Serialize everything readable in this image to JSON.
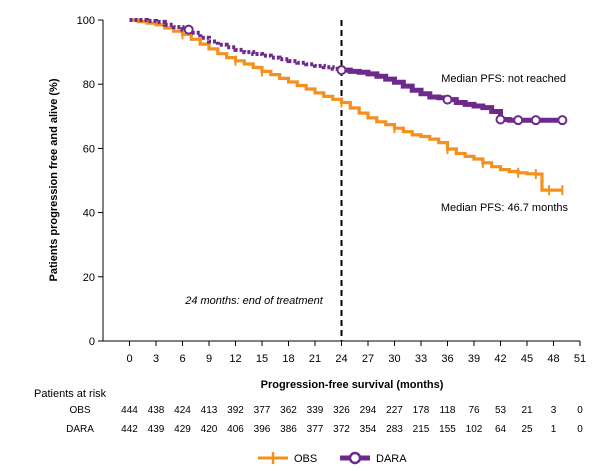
{
  "chart_data": {
    "type": "line",
    "title": "",
    "xlabel": "Progression-free survival (months)",
    "ylabel": "Patients progression free and alive (%)",
    "xlim": [
      -3,
      51
    ],
    "ylim": [
      0,
      100
    ],
    "x_ticks": [
      0,
      3,
      6,
      9,
      12,
      15,
      18,
      21,
      24,
      27,
      30,
      33,
      36,
      39,
      42,
      45,
      48,
      51
    ],
    "y_ticks": [
      0,
      20,
      40,
      60,
      80,
      100
    ],
    "grid": false,
    "vline": {
      "x": 24,
      "label": "24 months: end of treatment"
    },
    "series": [
      {
        "name": "OBS",
        "color": "#F4901E",
        "marker": "censor-tick",
        "x": [
          0,
          1,
          2,
          3,
          4,
          5,
          6,
          7,
          8,
          9,
          10,
          11,
          12,
          13,
          14,
          15,
          16,
          17,
          18,
          19,
          20,
          21,
          22,
          23,
          24,
          25,
          26,
          27,
          28,
          29,
          30,
          31,
          32,
          33,
          34,
          35,
          36,
          37,
          38,
          39,
          40,
          41,
          42,
          43,
          44,
          45,
          46,
          46.7,
          47,
          48,
          49
        ],
        "y": [
          100,
          99.5,
          99,
          98.5,
          97.5,
          96.5,
          95.5,
          94,
          92.5,
          91,
          89.5,
          88.3,
          87.3,
          86.3,
          85.2,
          84,
          83,
          81.8,
          80.7,
          79.6,
          78.5,
          77.3,
          76.2,
          75.3,
          74.3,
          72.6,
          71,
          69.5,
          68.3,
          67.4,
          66.3,
          65.2,
          64.2,
          63.7,
          62.9,
          61.8,
          59.8,
          58.4,
          57.5,
          56.7,
          55.5,
          54.3,
          53.4,
          52.8,
          52.4,
          52.1,
          52,
          47,
          47,
          47,
          47
        ]
      },
      {
        "name": "DARA",
        "color": "#6C2A8C",
        "marker": "open-circle",
        "x": [
          0,
          1,
          2,
          3,
          4,
          5,
          6,
          7,
          8,
          9,
          10,
          11,
          12,
          13,
          14,
          15,
          16,
          17,
          18,
          19,
          20,
          21,
          22,
          23,
          24,
          25,
          26,
          27,
          28,
          29,
          30,
          31,
          32,
          33,
          34,
          35,
          36,
          37,
          38,
          39,
          40,
          41,
          42,
          43,
          44,
          45,
          46,
          47,
          48,
          49
        ],
        "y": [
          100,
          100,
          99.7,
          99.4,
          98.5,
          97.8,
          97,
          96,
          94.5,
          93.3,
          92.3,
          91.5,
          90.7,
          90,
          89.4,
          88.9,
          88.3,
          87.8,
          87.2,
          86.7,
          86.2,
          85.7,
          85.3,
          84.8,
          84.4,
          84,
          83.7,
          83.2,
          82.5,
          81.6,
          80.6,
          79.4,
          78.1,
          77,
          76,
          75.8,
          75.2,
          74.3,
          73.7,
          73.2,
          72.7,
          71.5,
          69,
          68.8,
          68.8,
          68.8,
          68.8,
          68.8,
          68.8,
          68.8
        ]
      }
    ],
    "annotations": [
      {
        "text": "Median PFS: not reached",
        "series": "DARA"
      },
      {
        "text": "Median PFS: 46.7 months",
        "series": "OBS"
      }
    ],
    "legend": [
      "OBS",
      "DARA"
    ],
    "legend_position": "bottom-center"
  },
  "risk_table": {
    "header": "Patients at risk",
    "rows": [
      {
        "label": "OBS",
        "values": [
          "444",
          "438",
          "424",
          "413",
          "392",
          "377",
          "362",
          "339",
          "326",
          "294",
          "227",
          "178",
          "118",
          "76",
          "53",
          "21",
          "3",
          "0"
        ]
      },
      {
        "label": "DARA",
        "values": [
          "442",
          "439",
          "429",
          "420",
          "406",
          "396",
          "386",
          "377",
          "372",
          "354",
          "283",
          "215",
          "155",
          "102",
          "64",
          "25",
          "1",
          "0"
        ]
      }
    ]
  }
}
